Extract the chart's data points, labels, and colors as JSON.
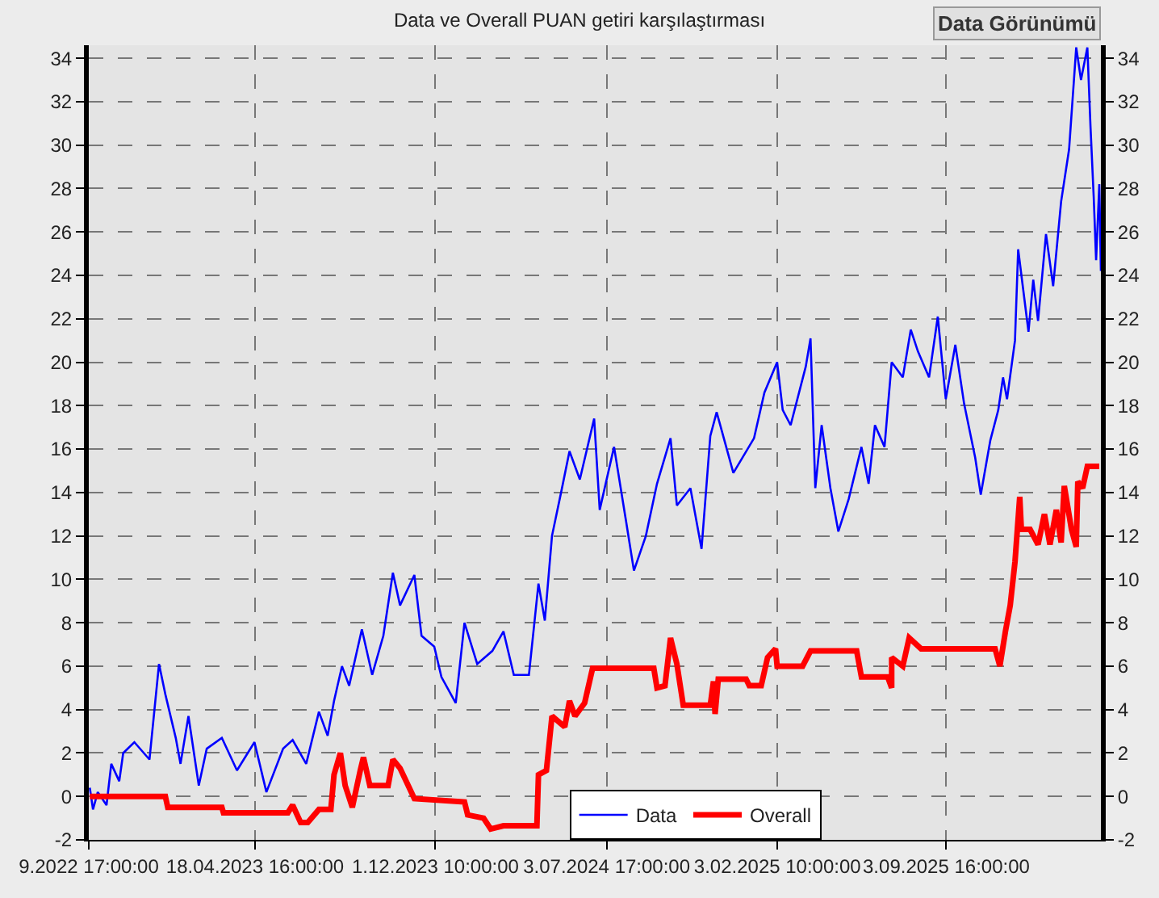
{
  "chart_data": {
    "type": "line",
    "title": "Data ve Overall PUAN getiri karşılaştırması",
    "annotations": [
      "Data Görünümü"
    ],
    "xlim": [
      "2022-09-21T17:00",
      "2026-03-17"
    ],
    "xticks": [
      {
        "value": "2022-09-21T17:00",
        "label": "9.2022 17:00:00"
      },
      {
        "value": "2023-04-18T16:00",
        "label": "18.04.2023 16:00:00"
      },
      {
        "value": "2023-12-01T10:00",
        "label": "1.12.2023 10:00:00"
      },
      {
        "value": "2024-07-03T17:00",
        "label": "3.07.2024 17:00:00"
      },
      {
        "value": "2025-02-03T10:00",
        "label": "3.02.2025 10:00:00"
      },
      {
        "value": "2025-09-03T16:00",
        "label": "3.09.2025 16:00:00"
      }
    ],
    "ylim": [
      -2,
      34.6
    ],
    "yticks": [
      -2,
      0,
      2,
      4,
      6,
      8,
      10,
      12,
      14,
      16,
      18,
      20,
      22,
      24,
      26,
      28,
      30,
      32,
      34
    ],
    "y2lim": [
      -2,
      34.6
    ],
    "y2ticks": [
      -2,
      0,
      2,
      4,
      6,
      8,
      10,
      12,
      14,
      16,
      18,
      20,
      22,
      24,
      26,
      28,
      30,
      32,
      34
    ],
    "grid": true,
    "legend": "bottom",
    "line_style": "solid",
    "series": [
      {
        "name": "Data",
        "color": "#0000ff",
        "x": [
          "2022-09-23",
          "2022-09-27",
          "2022-10-03",
          "2022-10-14",
          "2022-10-20",
          "2022-10-30",
          "2022-11-04",
          "2022-11-18",
          "2022-12-07",
          "2022-12-19",
          "2022-12-27",
          "2023-01-09",
          "2023-01-15",
          "2023-01-25",
          "2023-02-07",
          "2023-02-17",
          "2023-03-08",
          "2023-03-27",
          "2023-04-18",
          "2023-05-03",
          "2023-05-24",
          "2023-06-05",
          "2023-06-22",
          "2023-07-08",
          "2023-07-19",
          "2023-07-27",
          "2023-08-06",
          "2023-08-15",
          "2023-08-31",
          "2023-09-13",
          "2023-09-27",
          "2023-10-09",
          "2023-10-18",
          "2023-11-05",
          "2023-11-14",
          "2023-11-30",
          "2023-12-09",
          "2023-12-27",
          "2024-01-07",
          "2024-01-23",
          "2024-02-11",
          "2024-02-25",
          "2024-03-09",
          "2024-03-28",
          "2024-04-09",
          "2024-04-17",
          "2024-04-26",
          "2024-05-08",
          "2024-05-18",
          "2024-05-31",
          "2024-06-18",
          "2024-06-25",
          "2024-07-13",
          "2024-07-28",
          "2024-08-07",
          "2024-08-22",
          "2024-09-05",
          "2024-09-22",
          "2024-09-30",
          "2024-10-17",
          "2024-10-31",
          "2024-11-11",
          "2024-11-19",
          "2024-12-10",
          "2025-01-05",
          "2025-01-18",
          "2025-02-03",
          "2025-02-10",
          "2025-02-20",
          "2025-03-11",
          "2025-03-17",
          "2025-03-23",
          "2025-03-31",
          "2025-04-11",
          "2025-04-21",
          "2025-05-04",
          "2025-05-20",
          "2025-05-29",
          "2025-06-06",
          "2025-06-18",
          "2025-06-27",
          "2025-07-11",
          "2025-07-21",
          "2025-07-30",
          "2025-08-13",
          "2025-08-24",
          "2025-09-03",
          "2025-09-15",
          "2025-09-26",
          "2025-10-10",
          "2025-10-17",
          "2025-10-29",
          "2025-11-08",
          "2025-11-14",
          "2025-11-19",
          "2025-11-29",
          "2025-12-03",
          "2025-12-16",
          "2025-12-22",
          "2025-12-28",
          "2026-01-07",
          "2026-01-16",
          "2026-01-26",
          "2026-02-05",
          "2026-02-14",
          "2026-02-20",
          "2026-02-28",
          "2026-03-04",
          "2026-03-08",
          "2026-03-11",
          "2026-03-15",
          "2026-03-17"
        ],
        "values": [
          0.4,
          -0.6,
          0.2,
          -0.4,
          1.5,
          0.7,
          2.0,
          2.5,
          1.7,
          6.1,
          4.7,
          2.7,
          1.5,
          3.7,
          0.5,
          2.2,
          2.7,
          1.2,
          2.5,
          0.2,
          2.2,
          2.6,
          1.5,
          3.9,
          2.8,
          4.4,
          6.0,
          5.1,
          7.7,
          5.6,
          7.4,
          10.3,
          8.8,
          10.2,
          7.4,
          6.9,
          5.5,
          4.3,
          8.0,
          6.1,
          6.7,
          7.6,
          5.6,
          5.6,
          9.8,
          8.1,
          12.0,
          14.1,
          15.9,
          14.6,
          17.4,
          13.2,
          16.1,
          12.7,
          10.4,
          12.0,
          14.4,
          16.5,
          13.4,
          14.2,
          11.4,
          16.6,
          17.7,
          14.9,
          16.5,
          18.6,
          20.0,
          17.8,
          17.1,
          19.8,
          21.1,
          14.2,
          17.1,
          14.2,
          12.2,
          13.7,
          16.1,
          14.4,
          17.1,
          16.1,
          20.0,
          19.3,
          21.5,
          20.5,
          19.3,
          22.1,
          18.3,
          20.8,
          18.1,
          15.6,
          13.9,
          16.4,
          17.8,
          19.3,
          18.3,
          21.0,
          25.2,
          21.4,
          23.8,
          21.9,
          25.9,
          23.5,
          27.4,
          29.8,
          34.5,
          33.0,
          34.5,
          30.8,
          27.6,
          24.7,
          28.2,
          24.2
        ]
      },
      {
        "name": "Overall",
        "color": "#ff0000",
        "x": [
          "2022-09-23",
          "2022-12-27",
          "2022-12-30",
          "2023-03-08",
          "2023-03-10",
          "2023-05-30",
          "2023-06-05",
          "2023-06-15",
          "2023-06-24",
          "2023-07-08",
          "2023-07-23",
          "2023-07-27",
          "2023-08-04",
          "2023-08-10",
          "2023-08-19",
          "2023-08-29",
          "2023-09-02",
          "2023-09-10",
          "2023-10-03",
          "2023-10-09",
          "2023-10-18",
          "2023-11-05",
          "2024-01-07",
          "2024-01-11",
          "2024-01-31",
          "2024-02-09",
          "2024-02-25",
          "2024-04-07",
          "2024-04-09",
          "2024-04-19",
          "2024-04-26",
          "2024-05-12",
          "2024-05-18",
          "2024-05-25",
          "2024-06-06",
          "2024-06-16",
          "2024-09-01",
          "2024-09-05",
          "2024-09-15",
          "2024-09-22",
          "2024-09-30",
          "2024-10-08",
          "2024-11-11",
          "2024-11-15",
          "2024-11-17",
          "2024-11-21",
          "2024-12-26",
          "2024-12-30",
          "2025-01-14",
          "2025-01-22",
          "2025-02-01",
          "2025-02-03",
          "2025-03-07",
          "2025-03-17",
          "2025-05-14",
          "2025-05-20",
          "2025-06-22",
          "2025-06-27",
          "2025-06-27",
          "2025-07-11",
          "2025-07-19",
          "2025-08-03",
          "2025-11-04",
          "2025-11-10",
          "2025-11-17",
          "2025-11-23",
          "2025-11-29",
          "2025-12-05",
          "2025-12-07",
          "2025-12-18",
          "2025-12-28",
          "2026-01-05",
          "2026-01-12",
          "2026-01-20",
          "2026-01-26",
          "2026-01-30",
          "2026-02-08",
          "2026-02-14",
          "2026-02-16",
          "2026-02-22",
          "2026-02-28",
          "2026-03-15"
        ],
        "values": [
          0.0,
          0.0,
          -0.5,
          -0.5,
          -0.75,
          -0.75,
          -0.4,
          -1.2,
          -1.2,
          -0.6,
          -0.6,
          1.0,
          2.0,
          0.5,
          -0.5,
          1.2,
          1.8,
          0.5,
          0.5,
          1.7,
          1.3,
          -0.1,
          -0.25,
          -0.85,
          -1.0,
          -1.5,
          -1.35,
          -1.35,
          1.0,
          1.2,
          3.7,
          3.2,
          4.4,
          3.7,
          4.3,
          5.9,
          5.9,
          5.0,
          5.1,
          7.3,
          6.1,
          4.2,
          4.2,
          5.3,
          3.8,
          5.4,
          5.4,
          5.1,
          5.1,
          6.4,
          6.8,
          6.0,
          6.0,
          6.7,
          6.7,
          5.5,
          5.5,
          5.0,
          6.4,
          6.0,
          7.3,
          6.8,
          6.8,
          6.0,
          7.6,
          8.8,
          10.8,
          13.8,
          12.3,
          12.3,
          11.6,
          13.0,
          11.6,
          13.2,
          11.7,
          14.3,
          12.3,
          11.5,
          14.5,
          14.2,
          15.2,
          15.2
        ]
      }
    ]
  }
}
